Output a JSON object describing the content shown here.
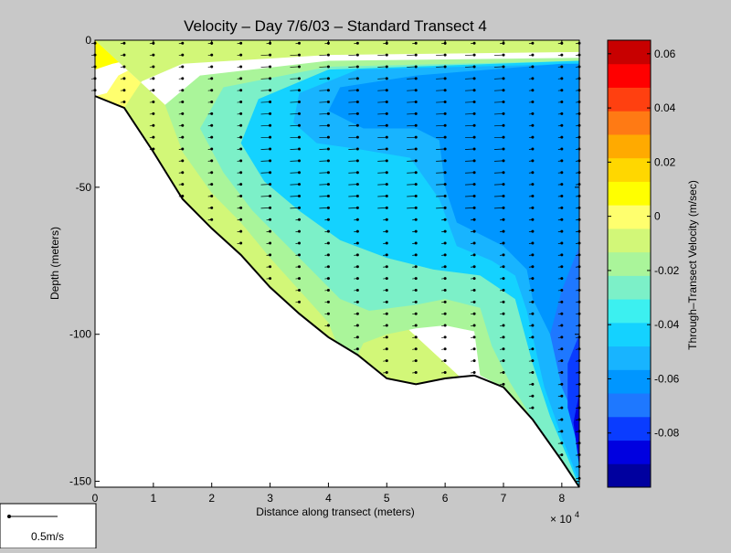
{
  "chart_data": {
    "type": "heatmap",
    "title": "Velocity – Day 7/6/03 – Standard Transect 4",
    "xlabel": "Distance along transect (meters)",
    "ylabel": "Depth (meters)",
    "x_exponent_label": "× 10",
    "x_exponent": "4",
    "xlim": [
      0,
      83000
    ],
    "ylim": [
      -152,
      0
    ],
    "x_ticks": [
      {
        "value": 0,
        "label": "0"
      },
      {
        "value": 10000,
        "label": "1"
      },
      {
        "value": 20000,
        "label": "2"
      },
      {
        "value": 30000,
        "label": "3"
      },
      {
        "value": 40000,
        "label": "4"
      },
      {
        "value": 50000,
        "label": "5"
      },
      {
        "value": 60000,
        "label": "6"
      },
      {
        "value": 70000,
        "label": "7"
      },
      {
        "value": 80000,
        "label": "8"
      }
    ],
    "y_ticks": [
      {
        "value": 0,
        "label": "0"
      },
      {
        "value": -50,
        "label": "-50"
      },
      {
        "value": -100,
        "label": "-100"
      },
      {
        "value": -150,
        "label": "-150"
      }
    ],
    "colorbar": {
      "label": "Through–Transect Velocity (m/sec)",
      "min": -0.1,
      "max": 0.065,
      "colors": [
        "#00009f",
        "#0000e0",
        "#0a3cff",
        "#1e78ff",
        "#0096ff",
        "#18b4ff",
        "#14d2ff",
        "#3cf0f0",
        "#7cf0c8",
        "#aaf59a",
        "#d2f778",
        "#ffff6e",
        "#ffff00",
        "#ffd700",
        "#ffaa00",
        "#ff7a14",
        "#ff4010",
        "#ff0000",
        "#c80000"
      ],
      "ticks": [
        {
          "value": 0.06,
          "label": "0.06"
        },
        {
          "value": 0.04,
          "label": "0.04"
        },
        {
          "value": 0.02,
          "label": "0.02"
        },
        {
          "value": 0,
          "label": "0"
        },
        {
          "value": -0.02,
          "label": "-0.02"
        },
        {
          "value": -0.04,
          "label": "-0.04"
        },
        {
          "value": -0.06,
          "label": "-0.06"
        },
        {
          "value": -0.08,
          "label": "-0.08"
        }
      ]
    },
    "bottom_profile": [
      [
        0,
        -19
      ],
      [
        5000,
        -23
      ],
      [
        10000,
        -38
      ],
      [
        15000,
        -54
      ],
      [
        20000,
        -64
      ],
      [
        25000,
        -73
      ],
      [
        30000,
        -84
      ],
      [
        35000,
        -93
      ],
      [
        40000,
        -101
      ],
      [
        45000,
        -107
      ],
      [
        50000,
        -115
      ],
      [
        55000,
        -117
      ],
      [
        60000,
        -115
      ],
      [
        65000,
        -114
      ],
      [
        70000,
        -118
      ],
      [
        75000,
        -129
      ],
      [
        80000,
        -143
      ],
      [
        83000,
        -152
      ]
    ],
    "station_x": [
      0,
      5000,
      10000,
      15000,
      20000,
      25000,
      30000,
      35000,
      40000,
      45000,
      50000,
      55000,
      60000,
      65000,
      70000,
      75000,
      80000,
      83000
    ],
    "bin_depth_m": 4,
    "velocity_contours": [
      {
        "value": 0.06,
        "polygon": [
          [
            0,
            0
          ],
          [
            4000,
            0
          ],
          [
            0,
            -3
          ]
        ]
      },
      {
        "value": 0.03,
        "polygon": [
          [
            0,
            0
          ],
          [
            10000,
            0
          ],
          [
            4000,
            -3
          ],
          [
            0,
            -6
          ]
        ]
      },
      {
        "value": 0.01,
        "polygon": [
          [
            0,
            0
          ],
          [
            30000,
            0
          ],
          [
            20000,
            -3
          ],
          [
            10000,
            -5
          ],
          [
            3000,
            -8
          ],
          [
            0,
            -10
          ]
        ]
      },
      {
        "value": 0.0,
        "polygon": [
          [
            0,
            0
          ],
          [
            83000,
            0
          ],
          [
            83000,
            -2
          ],
          [
            45000,
            -3
          ],
          [
            20000,
            -5
          ],
          [
            8000,
            -8
          ],
          [
            4000,
            -12
          ],
          [
            2000,
            -18
          ],
          [
            0,
            -19
          ],
          [
            5000,
            -23
          ],
          [
            10000,
            -38
          ],
          [
            15000,
            -54
          ],
          [
            20000,
            -64
          ],
          [
            25000,
            -73
          ],
          [
            30000,
            -84
          ],
          [
            35000,
            -93
          ],
          [
            40000,
            -101
          ],
          [
            45000,
            -107
          ],
          [
            50000,
            -115
          ],
          [
            55000,
            -117
          ],
          [
            60000,
            -115
          ],
          [
            65000,
            -114
          ],
          [
            70000,
            -118
          ],
          [
            75000,
            -129
          ],
          [
            80000,
            -143
          ],
          [
            83000,
            -152
          ],
          [
            83000,
            -152
          ]
        ]
      },
      {
        "value": -0.01,
        "polygon": [
          [
            0,
            0
          ],
          [
            83000,
            0
          ],
          [
            83000,
            -4
          ],
          [
            40000,
            -5
          ],
          [
            15000,
            -8
          ],
          [
            8000,
            -14
          ],
          [
            5000,
            -23
          ],
          [
            10000,
            -38
          ],
          [
            15000,
            -54
          ],
          [
            20000,
            -64
          ],
          [
            25000,
            -73
          ],
          [
            30000,
            -84
          ],
          [
            35000,
            -93
          ],
          [
            40000,
            -101
          ],
          [
            45000,
            -107
          ],
          [
            50000,
            -115
          ],
          [
            55000,
            -117
          ],
          [
            60000,
            -115
          ],
          [
            65000,
            -114
          ],
          [
            70000,
            -118
          ],
          [
            75000,
            -129
          ],
          [
            80000,
            -143
          ],
          [
            83000,
            -152
          ]
        ]
      },
      {
        "value": -0.02,
        "polygon": [
          [
            83000,
            -6
          ],
          [
            40000,
            -7
          ],
          [
            18000,
            -12
          ],
          [
            12000,
            -22
          ],
          [
            15000,
            -38
          ],
          [
            20000,
            -52
          ],
          [
            25000,
            -62
          ],
          [
            30000,
            -74
          ],
          [
            35000,
            -85
          ],
          [
            40000,
            -96
          ],
          [
            42000,
            -106
          ],
          [
            45000,
            -107
          ],
          [
            46000,
            -103
          ],
          [
            50000,
            -100
          ],
          [
            55000,
            -98
          ],
          [
            60000,
            -97
          ],
          [
            65000,
            -99
          ],
          [
            66000,
            -114
          ],
          [
            70000,
            -118
          ],
          [
            75000,
            -129
          ],
          [
            80000,
            -143
          ],
          [
            83000,
            -152
          ]
        ]
      },
      {
        "value": -0.03,
        "polygon": [
          [
            83000,
            -7
          ],
          [
            40000,
            -9
          ],
          [
            22000,
            -16
          ],
          [
            18000,
            -30
          ],
          [
            22000,
            -45
          ],
          [
            27000,
            -58
          ],
          [
            32000,
            -68
          ],
          [
            37000,
            -78
          ],
          [
            42000,
            -88
          ],
          [
            47000,
            -92
          ],
          [
            55000,
            -90
          ],
          [
            60000,
            -88
          ],
          [
            66000,
            -91
          ],
          [
            68000,
            -104
          ],
          [
            71000,
            -116
          ],
          [
            75000,
            -129
          ],
          [
            80000,
            -143
          ],
          [
            83000,
            -152
          ]
        ]
      },
      {
        "value": -0.04,
        "polygon": [
          [
            83000,
            -7
          ],
          [
            40000,
            -10
          ],
          [
            28000,
            -20
          ],
          [
            25000,
            -35
          ],
          [
            29000,
            -48
          ],
          [
            35000,
            -58
          ],
          [
            42000,
            -68
          ],
          [
            50000,
            -74
          ],
          [
            58000,
            -78
          ],
          [
            66000,
            -80
          ],
          [
            72000,
            -88
          ],
          [
            75000,
            -110
          ],
          [
            78000,
            -128
          ],
          [
            81000,
            -142
          ],
          [
            83000,
            -152
          ]
        ]
      },
      {
        "value": -0.05,
        "polygon": [
          [
            83000,
            -8
          ],
          [
            45000,
            -10
          ],
          [
            35000,
            -18
          ],
          [
            34000,
            -28
          ],
          [
            38000,
            -35
          ],
          [
            45000,
            -37
          ],
          [
            54000,
            -40
          ],
          [
            59000,
            -54
          ],
          [
            62000,
            -70
          ],
          [
            68000,
            -75
          ],
          [
            72000,
            -80
          ],
          [
            74000,
            -92
          ],
          [
            77000,
            -118
          ],
          [
            80000,
            -135
          ],
          [
            83000,
            -150
          ]
        ]
      },
      {
        "value": -0.06,
        "polygon": [
          [
            80000,
            -8
          ],
          [
            55000,
            -12
          ],
          [
            42000,
            -16
          ],
          [
            40000,
            -24
          ],
          [
            46000,
            -30
          ],
          [
            55000,
            -30
          ],
          [
            59000,
            -34
          ],
          [
            60000,
            -50
          ],
          [
            62000,
            -62
          ],
          [
            70000,
            -70
          ],
          [
            74000,
            -78
          ],
          [
            75000,
            -88
          ],
          [
            78000,
            -100
          ],
          [
            80000,
            -115
          ],
          [
            83000,
            -130
          ],
          [
            83000,
            -8
          ]
        ]
      },
      {
        "value": -0.065,
        "polygon": [
          [
            60000,
            -18
          ],
          [
            47000,
            -20
          ],
          [
            45000,
            -27
          ],
          [
            52000,
            -30
          ],
          [
            60000,
            -25
          ]
        ]
      },
      {
        "value": -0.07,
        "polygon": [
          [
            83000,
            -70
          ],
          [
            80000,
            -85
          ],
          [
            78000,
            -100
          ],
          [
            80000,
            -118
          ],
          [
            83000,
            -132
          ]
        ]
      },
      {
        "value": -0.08,
        "polygon": [
          [
            83000,
            -100
          ],
          [
            81000,
            -110
          ],
          [
            81000,
            -125
          ],
          [
            83000,
            -140
          ]
        ]
      },
      {
        "value": -0.09,
        "polygon": [
          [
            83000,
            -120
          ],
          [
            82000,
            -130
          ],
          [
            83000,
            -145
          ]
        ]
      }
    ],
    "quiver_scale_label": "0.5m/s"
  }
}
